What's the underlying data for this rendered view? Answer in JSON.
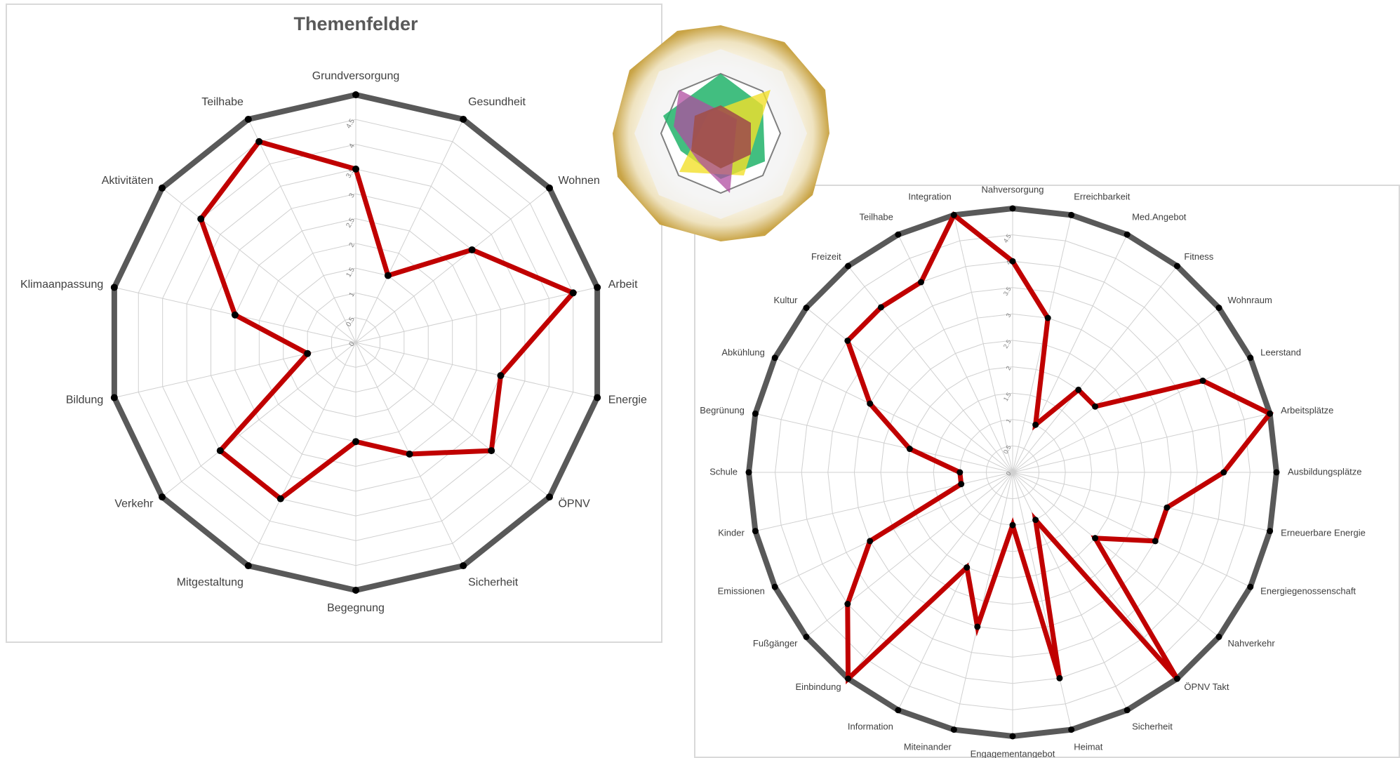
{
  "chart_data": [
    {
      "type": "radar",
      "title": "Themenfelder",
      "categories": [
        "Grundversorgung",
        "Gesundheit",
        "Wohnen",
        "Arbeit",
        "Energie",
        "ÖPNV",
        "Sicherheit",
        "Begegnung",
        "Mitgestaltung",
        "Verkehr",
        "Bildung",
        "Klimaanpassung",
        "Aktivitäten",
        "Teilhabe"
      ],
      "series": [
        {
          "color": "#595959",
          "values": [
            5,
            5,
            5,
            5,
            5,
            5,
            5,
            5,
            5,
            5,
            5,
            5,
            5,
            5
          ]
        },
        {
          "color": "#c00000",
          "values": [
            3.5,
            1.5,
            3,
            4.5,
            3,
            3.5,
            2.5,
            2,
            3.5,
            3.5,
            1,
            2.5,
            4,
            4.5
          ]
        }
      ],
      "ylim": [
        0,
        5
      ],
      "yticks": [
        0,
        0.5,
        1,
        1.5,
        2,
        2.5,
        3,
        3.5,
        4,
        4.5
      ],
      "grid": true
    },
    {
      "type": "radar",
      "categories": [
        "Nahversorgung",
        "Erreichbarkeit",
        "Med.Angebot",
        "Fitness",
        "Wohnraum",
        "Leerstand",
        "Arbeitsplätze",
        "Ausbildungsplätze",
        "Erneuerbare Energie",
        "Energiegenossenschaft",
        "Nahverkehr",
        "ÖPNV Takt",
        "Sicherheit",
        "Heimat",
        "Engagementangebot",
        "Miteinander",
        "Information",
        "Einbindung",
        "Fußgänger",
        "Emissionen",
        "Kinder",
        "Schule",
        "Begrünung",
        "Abkühlung",
        "Kultur",
        "Freizeit",
        "Teilhabe",
        "Integration"
      ],
      "series": [
        {
          "color": "#595959",
          "values": [
            5,
            5,
            5,
            5,
            5,
            5,
            5,
            5,
            5,
            5,
            5,
            5,
            5,
            5,
            5,
            5,
            5,
            5,
            5,
            5,
            5,
            5,
            5,
            5,
            5,
            5,
            5,
            5
          ]
        },
        {
          "color": "#c00000",
          "values": [
            4,
            3,
            1,
            2,
            2,
            4,
            5,
            4,
            3,
            3,
            2,
            5,
            1,
            4,
            1,
            3,
            2,
            5,
            4,
            3,
            1,
            1,
            2,
            3,
            4,
            4,
            4,
            5
          ]
        }
      ],
      "ylim": [
        0,
        5
      ],
      "yticks": [
        0,
        0.5,
        1,
        1.5,
        2,
        2.5,
        3,
        3.5,
        4,
        4.5
      ],
      "grid": true
    }
  ]
}
